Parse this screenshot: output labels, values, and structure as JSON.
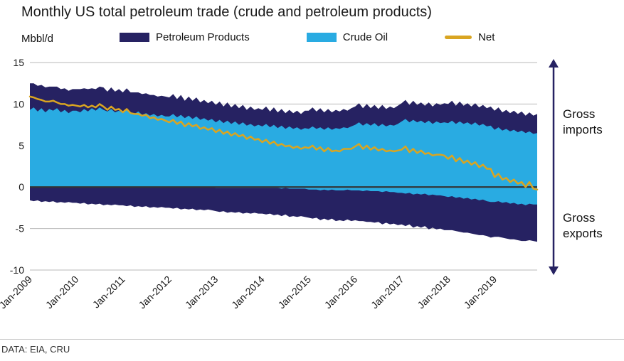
{
  "title": "Monthly US total petroleum trade (crude and petroleum products)",
  "unit_label": "Mbbl/d",
  "legend": [
    {
      "label": "Petroleum Products",
      "color": "#262262",
      "type": "area"
    },
    {
      "label": "Crude Oil",
      "color": "#29abe2",
      "type": "area"
    },
    {
      "label": "Net",
      "color": "#d9a521",
      "type": "line"
    }
  ],
  "annotations": {
    "imports": "Gross imports",
    "exports": "Gross exports",
    "arrow_color": "#262262"
  },
  "footer": "DATA: EIA, CRU",
  "colors": {
    "petroleum_products": "#262262",
    "crude_oil": "#29abe2",
    "net_line": "#d9a521",
    "gridline": "#b9b9b9",
    "zero_axis": "#333333"
  },
  "chart_data": {
    "type": "area",
    "x_start": "Jan-2009",
    "x_end": "Dec-2019",
    "x_frequency": "monthly",
    "x_tick_labels": [
      "Jan-2009",
      "Jan-2010",
      "Jan-2011",
      "Jan-2012",
      "Jan-2013",
      "Jan-2014",
      "Jan-2015",
      "Jan-2016",
      "Jan-2017",
      "Jan-2018",
      "Jan-2019"
    ],
    "y_ticks": [
      15,
      10,
      5,
      0,
      -5,
      -10
    ],
    "ylim": [
      -10,
      15
    ],
    "ylabel": "Mbbl/d",
    "grid": true,
    "legend_position": "top",
    "series": [
      {
        "name": "Crude Oil imports",
        "color": "#29abe2",
        "stack": "imports",
        "values": [
          9.3,
          9.6,
          9.1,
          9.5,
          9.0,
          9.4,
          9.2,
          9.5,
          9.0,
          9.3,
          8.9,
          9.2,
          9.2,
          9.0,
          9.4,
          9.1,
          9.5,
          9.2,
          9.6,
          9.3,
          9.1,
          9.4,
          9.0,
          9.2,
          8.9,
          9.3,
          9.0,
          8.8,
          9.1,
          8.7,
          8.9,
          8.6,
          8.8,
          8.5,
          8.7,
          8.5,
          8.5,
          8.8,
          8.4,
          8.7,
          8.3,
          8.6,
          8.2,
          8.5,
          8.1,
          8.3,
          8.0,
          8.2,
          7.8,
          8.1,
          7.7,
          8.0,
          7.6,
          7.9,
          7.5,
          7.8,
          7.4,
          7.6,
          7.3,
          7.5,
          7.3,
          7.6,
          7.2,
          7.5,
          7.1,
          7.4,
          7.0,
          7.3,
          7.0,
          7.2,
          6.9,
          7.1,
          7.0,
          7.3,
          7.0,
          7.2,
          6.9,
          7.2,
          6.9,
          7.1,
          7.0,
          7.2,
          7.1,
          7.3,
          7.5,
          7.8,
          7.4,
          7.7,
          7.4,
          7.7,
          7.3,
          7.6,
          7.3,
          7.5,
          7.4,
          7.6,
          7.9,
          8.2,
          7.8,
          8.1,
          7.8,
          8.0,
          7.7,
          8.0,
          7.6,
          7.9,
          7.7,
          7.8,
          7.7,
          8.0,
          7.6,
          7.9,
          7.6,
          7.8,
          7.5,
          7.8,
          7.4,
          7.6,
          7.3,
          7.4,
          6.9,
          7.2,
          6.8,
          7.0,
          6.7,
          6.9,
          6.6,
          6.8,
          6.5,
          6.7,
          6.4,
          6.5
        ]
      },
      {
        "name": "Petroleum Products imports",
        "color": "#262262",
        "stack": "imports",
        "values": [
          3.2,
          2.9,
          3.1,
          2.8,
          3.0,
          2.7,
          2.9,
          2.6,
          2.8,
          2.6,
          2.7,
          2.6,
          2.6,
          2.8,
          2.5,
          2.7,
          2.4,
          2.6,
          2.5,
          2.7,
          2.4,
          2.6,
          2.5,
          2.6,
          2.5,
          2.6,
          2.4,
          2.6,
          2.3,
          2.5,
          2.4,
          2.5,
          2.3,
          2.4,
          2.3,
          2.4,
          2.3,
          2.4,
          2.2,
          2.4,
          2.1,
          2.3,
          2.2,
          2.3,
          2.1,
          2.2,
          2.1,
          2.2,
          2.1,
          2.2,
          2.0,
          2.2,
          2.0,
          2.1,
          2.0,
          2.1,
          1.9,
          2.1,
          2.0,
          2.0,
          2.0,
          2.1,
          1.9,
          2.1,
          1.9,
          2.0,
          1.9,
          2.0,
          1.9,
          2.0,
          1.9,
          2.1,
          2.2,
          2.3,
          2.1,
          2.3,
          2.1,
          2.2,
          2.1,
          2.2,
          2.1,
          2.2,
          2.1,
          2.2,
          2.2,
          2.3,
          2.1,
          2.3,
          2.1,
          2.2,
          2.1,
          2.3,
          2.1,
          2.2,
          2.1,
          2.2,
          2.2,
          2.3,
          2.1,
          2.3,
          2.1,
          2.2,
          2.1,
          2.2,
          2.1,
          2.2,
          2.2,
          2.3,
          2.3,
          2.4,
          2.2,
          2.4,
          2.2,
          2.3,
          2.2,
          2.3,
          2.2,
          2.3,
          2.2,
          2.3,
          2.3,
          2.4,
          2.2,
          2.3,
          2.2,
          2.3,
          2.2,
          2.3,
          2.1,
          2.3,
          2.2,
          2.3
        ]
      },
      {
        "name": "Crude Oil exports",
        "color": "#29abe2",
        "stack": "exports",
        "values": [
          0,
          0,
          0,
          0,
          0,
          0,
          0,
          0,
          0,
          0,
          0,
          0,
          0,
          0,
          0,
          0,
          0,
          0,
          0,
          0,
          0,
          0,
          0,
          0,
          0,
          0,
          0,
          0,
          0,
          0,
          0,
          0,
          0,
          0,
          0,
          0,
          0,
          0,
          0,
          0,
          0,
          0,
          0,
          0,
          0,
          0,
          0,
          0,
          -0.1,
          -0.1,
          -0.1,
          -0.1,
          -0.1,
          -0.1,
          -0.1,
          -0.1,
          -0.1,
          -0.1,
          -0.1,
          -0.1,
          -0.1,
          -0.1,
          -0.1,
          -0.1,
          -0.1,
          -0.2,
          -0.1,
          -0.2,
          -0.2,
          -0.2,
          -0.2,
          -0.2,
          -0.3,
          -0.3,
          -0.3,
          -0.4,
          -0.3,
          -0.4,
          -0.3,
          -0.4,
          -0.4,
          -0.4,
          -0.3,
          -0.4,
          -0.4,
          -0.4,
          -0.5,
          -0.4,
          -0.5,
          -0.5,
          -0.5,
          -0.6,
          -0.5,
          -0.6,
          -0.6,
          -0.7,
          -0.7,
          -0.8,
          -0.7,
          -0.9,
          -0.8,
          -0.9,
          -0.8,
          -1.0,
          -0.9,
          -1.0,
          -1.0,
          -1.1,
          -1.2,
          -1.1,
          -1.3,
          -1.2,
          -1.4,
          -1.3,
          -1.5,
          -1.4,
          -1.6,
          -1.5,
          -1.7,
          -1.8,
          -1.8,
          -1.7,
          -1.9,
          -1.8,
          -2.0,
          -1.9,
          -2.1,
          -2.0,
          -2.2,
          -2.0,
          -2.1,
          -2.1
        ]
      },
      {
        "name": "Petroleum Products exports",
        "color": "#262262",
        "stack": "exports",
        "values": [
          -1.6,
          -1.7,
          -1.6,
          -1.8,
          -1.7,
          -1.8,
          -1.7,
          -1.9,
          -1.8,
          -1.9,
          -1.8,
          -1.9,
          -1.9,
          -2.0,
          -1.9,
          -2.1,
          -2.0,
          -2.1,
          -2.0,
          -2.2,
          -2.1,
          -2.2,
          -2.1,
          -2.2,
          -2.2,
          -2.3,
          -2.2,
          -2.4,
          -2.3,
          -2.4,
          -2.3,
          -2.5,
          -2.4,
          -2.5,
          -2.4,
          -2.5,
          -2.5,
          -2.6,
          -2.5,
          -2.7,
          -2.6,
          -2.7,
          -2.6,
          -2.8,
          -2.7,
          -2.8,
          -2.7,
          -2.8,
          -2.8,
          -2.9,
          -2.8,
          -3.0,
          -2.9,
          -3.0,
          -2.9,
          -3.1,
          -3.0,
          -3.1,
          -3.0,
          -3.1,
          -3.1,
          -3.2,
          -3.1,
          -3.3,
          -3.2,
          -3.3,
          -3.2,
          -3.4,
          -3.3,
          -3.4,
          -3.3,
          -3.4,
          -3.4,
          -3.5,
          -3.4,
          -3.6,
          -3.5,
          -3.6,
          -3.5,
          -3.7,
          -3.6,
          -3.7,
          -3.6,
          -3.7,
          -3.6,
          -3.7,
          -3.6,
          -3.8,
          -3.7,
          -3.8,
          -3.7,
          -3.9,
          -3.8,
          -3.9,
          -3.8,
          -3.9,
          -3.8,
          -3.9,
          -3.8,
          -4.0,
          -3.9,
          -4.0,
          -3.9,
          -4.1,
          -4.0,
          -4.1,
          -4.0,
          -4.1,
          -4.0,
          -4.1,
          -4.0,
          -4.2,
          -4.1,
          -4.2,
          -4.1,
          -4.3,
          -4.2,
          -4.3,
          -4.2,
          -4.3,
          -4.2,
          -4.3,
          -4.2,
          -4.4,
          -4.3,
          -4.4,
          -4.3,
          -4.5,
          -4.3,
          -4.4,
          -4.4,
          -4.5
        ]
      },
      {
        "name": "Net",
        "color": "#d9a521",
        "stack": null,
        "values": [
          10.9,
          10.8,
          10.6,
          10.5,
          10.3,
          10.3,
          10.4,
          10.2,
          10.0,
          10.0,
          9.8,
          9.9,
          9.8,
          9.7,
          9.9,
          9.6,
          9.8,
          9.6,
          10.0,
          9.7,
          9.3,
          9.7,
          9.3,
          9.4,
          9.0,
          9.4,
          8.9,
          8.8,
          8.8,
          8.6,
          8.7,
          8.3,
          8.4,
          8.1,
          8.2,
          8.0,
          7.8,
          8.1,
          7.6,
          7.9,
          7.3,
          7.7,
          7.3,
          7.5,
          7.0,
          7.2,
          6.9,
          7.1,
          6.6,
          6.9,
          6.4,
          6.7,
          6.2,
          6.5,
          6.1,
          6.3,
          5.8,
          6.1,
          5.7,
          5.8,
          5.4,
          5.7,
          5.2,
          5.5,
          5.0,
          5.2,
          4.9,
          5.0,
          4.7,
          4.9,
          4.6,
          4.8,
          4.7,
          5.0,
          4.5,
          4.8,
          4.3,
          4.7,
          4.3,
          4.4,
          4.3,
          4.6,
          4.6,
          4.6,
          4.9,
          5.2,
          4.6,
          5.0,
          4.5,
          4.8,
          4.4,
          4.6,
          4.3,
          4.4,
          4.3,
          4.4,
          4.5,
          4.9,
          4.2,
          4.6,
          4.1,
          4.4,
          4.0,
          4.1,
          3.8,
          3.9,
          3.9,
          3.8,
          3.4,
          3.8,
          3.1,
          3.5,
          2.9,
          3.2,
          2.7,
          3.0,
          2.4,
          2.7,
          2.2,
          2.2,
          1.2,
          1.6,
          0.9,
          1.1,
          0.6,
          0.9,
          0.4,
          0.6,
          0.0,
          0.6,
          -0.2,
          -0.3
        ]
      }
    ]
  }
}
